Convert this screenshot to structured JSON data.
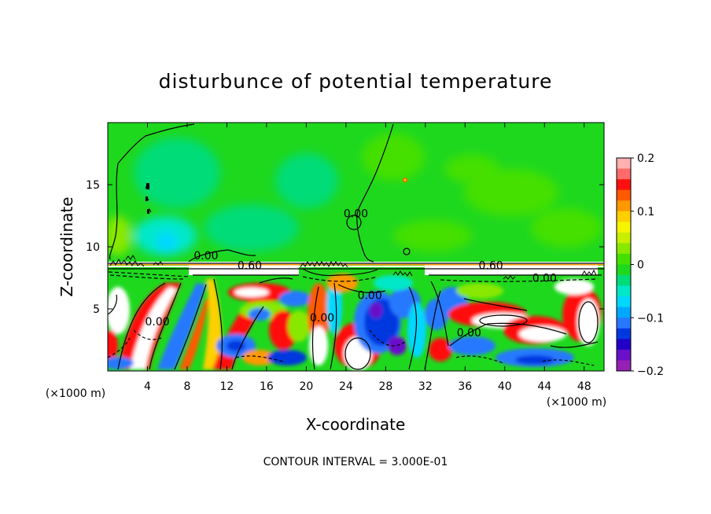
{
  "chart_data": {
    "type": "heatmap",
    "title": "disturbunce of potential temperature",
    "xlabel": "X-coordinate",
    "ylabel": "Z-coordinate",
    "x_unit": "(×1000 m)",
    "x_unit_secondary": "(×1000 m)",
    "footer": "CONTOUR INTERVAL = 3.000E-01",
    "xlim": [
      0,
      50
    ],
    "ylim": [
      0,
      20
    ],
    "x_ticks": [
      4,
      8,
      12,
      16,
      20,
      24,
      28,
      32,
      36,
      40,
      44,
      48
    ],
    "y_ticks": [
      5,
      10,
      15
    ],
    "colorbar": {
      "range": [
        -0.2,
        0.2
      ],
      "ticks": [
        {
          "value": 0.2,
          "label": "0.2"
        },
        {
          "value": 0.1,
          "label": "0.1"
        },
        {
          "value": 0.0,
          "label": "0"
        },
        {
          "value": -0.1,
          "label": "−0.1"
        },
        {
          "value": -0.2,
          "label": "−0.2"
        }
      ],
      "colors": [
        "#ffb0b0",
        "#ff6a6a",
        "#ff1010",
        "#ff5a00",
        "#ff9900",
        "#ffd000",
        "#f5f500",
        "#c8ee00",
        "#88e800",
        "#44e000",
        "#1ed81e",
        "#00dc78",
        "#00e8c8",
        "#00d8ff",
        "#00a8ff",
        "#2878ff",
        "#0038e0",
        "#2200c8",
        "#6a10c8",
        "#9420b4"
      ]
    },
    "contour_labels": [
      {
        "x": 5.0,
        "z": 4.0,
        "label": "0.00"
      },
      {
        "x": 9.9,
        "z": 9.3,
        "label": "0.00"
      },
      {
        "x": 14.3,
        "z": 8.5,
        "label": "0.60"
      },
      {
        "x": 21.6,
        "z": 4.3,
        "label": "0.00"
      },
      {
        "x": 25.0,
        "z": 12.7,
        "label": "0.00"
      },
      {
        "x": 26.4,
        "z": 6.1,
        "label": "0.00"
      },
      {
        "x": 36.4,
        "z": 3.1,
        "label": "0.00"
      },
      {
        "x": 38.6,
        "z": 8.5,
        "label": "0.60"
      },
      {
        "x": 44.0,
        "z": 7.5,
        "label": "0.00"
      }
    ]
  }
}
